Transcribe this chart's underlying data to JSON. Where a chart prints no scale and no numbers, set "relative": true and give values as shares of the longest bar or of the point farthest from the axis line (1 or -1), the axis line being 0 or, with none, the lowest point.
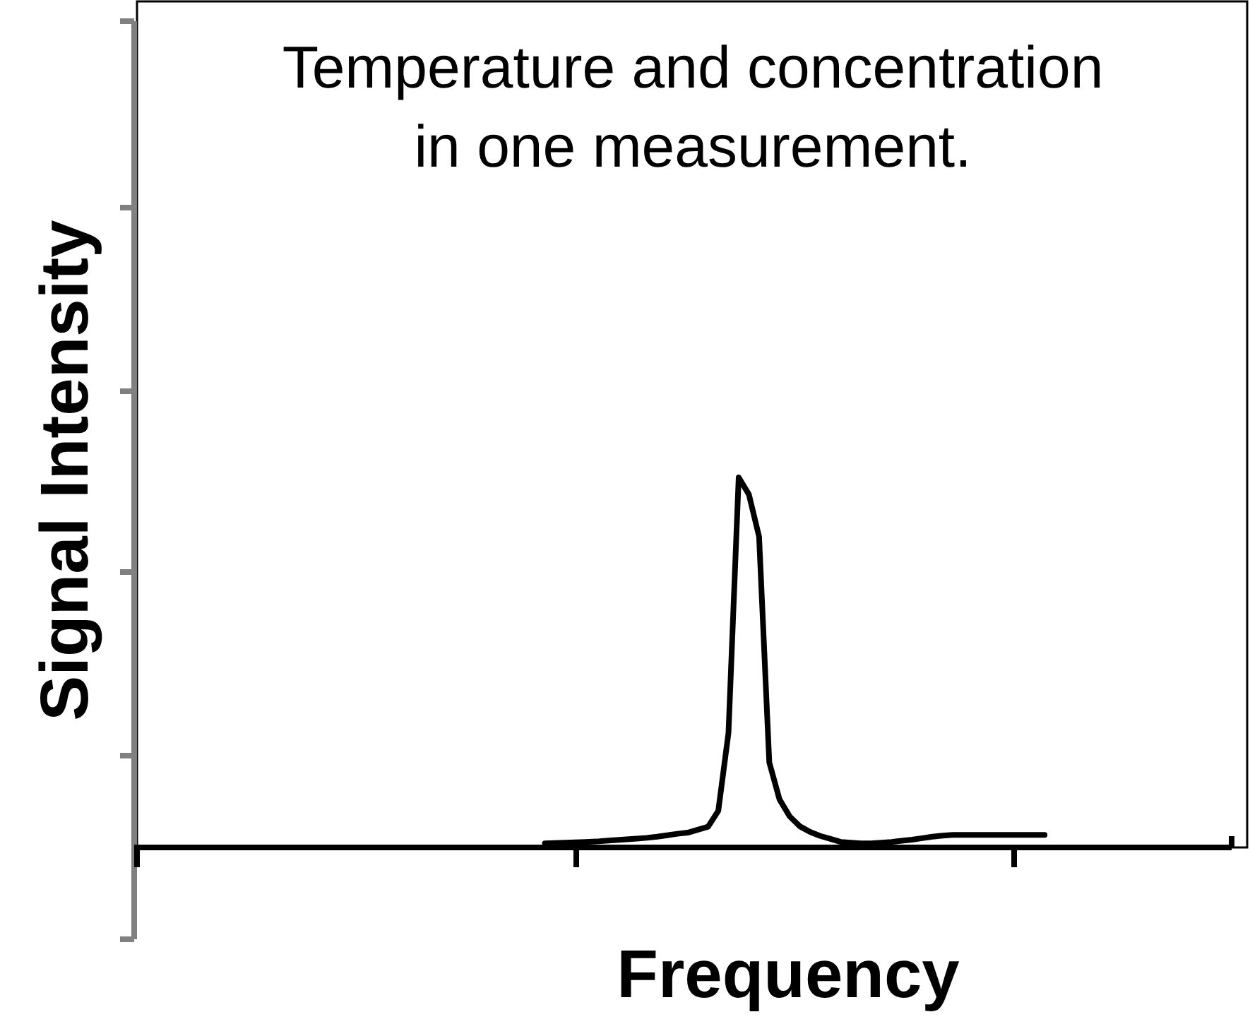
{
  "chart_data": {
    "type": "line",
    "relative": true,
    "title": "Temperature and concentration in one measurement.",
    "xlabel": "Frequency",
    "ylabel": "Signal Intensity",
    "legend": false,
    "marker": "none",
    "line_style": "solid",
    "categories": [
      null,
      null,
      null,
      null,
      null,
      null,
      null,
      null,
      null,
      null,
      null,
      null,
      null,
      null,
      null,
      null,
      null,
      null,
      null,
      null,
      null,
      null,
      null,
      null,
      null,
      null,
      null,
      null,
      null,
      null,
      null,
      null,
      null,
      null,
      null,
      null,
      null,
      null,
      null,
      null,
      null,
      null,
      null,
      null,
      null,
      null,
      null,
      null,
      null,
      null,
      null,
      null,
      null,
      null,
      null,
      null,
      null,
      null,
      null,
      null,
      null,
      null,
      null,
      null,
      null,
      null,
      null,
      null,
      null,
      null,
      null,
      null,
      null,
      null,
      null,
      null,
      null,
      null,
      null,
      null,
      null,
      null,
      null,
      null,
      null,
      null,
      null,
      null,
      null,
      null,
      null,
      null,
      null,
      null,
      null,
      null,
      null,
      null,
      null,
      null,
      null,
      null,
      null,
      null,
      null,
      null,
      null,
      null,
      null,
      null
    ],
    "series": [
      {
        "color": "#000000",
        "values": [
          null,
          null,
          null,
          null,
          null,
          null,
          null,
          null,
          null,
          null,
          null,
          null,
          null,
          null,
          null,
          null,
          null,
          null,
          null,
          null,
          null,
          null,
          null,
          null,
          null,
          null,
          null,
          null,
          null,
          null,
          null,
          null,
          null,
          null,
          null,
          null,
          null,
          null,
          null,
          null,
          0.011,
          0.012,
          0.013,
          0.014,
          0.015,
          0.016,
          0.018,
          0.02,
          0.022,
          0.024,
          0.026,
          0.029,
          0.033,
          0.037,
          0.04,
          0.048,
          0.056,
          0.099,
          0.31,
          1,
          0.954,
          0.84,
          0.23,
          0.13,
          0.084,
          0.057,
          0.042,
          0.031,
          0.023,
          0.015,
          0.013,
          0.011,
          0.011,
          0.013,
          0.015,
          0.018,
          0.021,
          0.025,
          0.029,
          0.032,
          0.034,
          0.034,
          0.034,
          0.034,
          0.034,
          0.034,
          0.034,
          0.034,
          0.034,
          0.034,
          null,
          null,
          null,
          null,
          null,
          null,
          null,
          null,
          null,
          null,
          null,
          null,
          null,
          null,
          null,
          null,
          null,
          null,
          null,
          null
        ]
      }
    ]
  }
}
